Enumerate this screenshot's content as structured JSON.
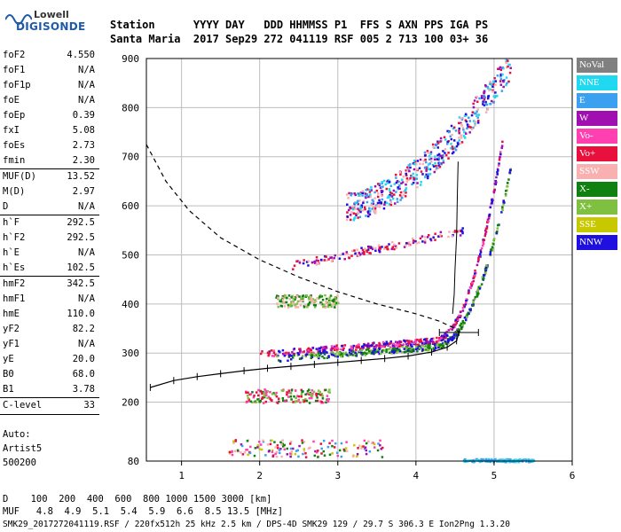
{
  "header": {
    "logo_brand": "Lowell",
    "logo_name": "DIGISONDE",
    "row1": "Station      YYYY DAY   DDD HHMMSS P1  FFS S AXN PPS IGA PS",
    "row2": "Santa Maria  2017 Sep29 272 041119 RSF 005 2 713 100 03+ 36"
  },
  "params": [
    {
      "label": "foF2",
      "value": "4.550"
    },
    {
      "label": "foF1",
      "value": "N/A"
    },
    {
      "label": "foF1p",
      "value": "N/A"
    },
    {
      "label": "foE",
      "value": "N/A"
    },
    {
      "label": "foEp",
      "value": "0.39"
    },
    {
      "label": "fxI",
      "value": "5.08"
    },
    {
      "label": "foEs",
      "value": "2.73"
    },
    {
      "label": "fmin",
      "value": "2.30"
    },
    {
      "label": "MUF(D)",
      "value": "13.52"
    },
    {
      "label": "M(D)",
      "value": "2.97"
    },
    {
      "label": "D",
      "value": "N/A"
    },
    {
      "label": "h`F",
      "value": "292.5"
    },
    {
      "label": "h`F2",
      "value": "292.5"
    },
    {
      "label": "h`E",
      "value": "N/A"
    },
    {
      "label": "h`Es",
      "value": "102.5"
    },
    {
      "label": "hmF2",
      "value": "342.5"
    },
    {
      "label": "hmF1",
      "value": "N/A"
    },
    {
      "label": "hmE",
      "value": "110.0"
    },
    {
      "label": "yF2",
      "value": "82.2"
    },
    {
      "label": "yF1",
      "value": "N/A"
    },
    {
      "label": "yE",
      "value": "20.0"
    },
    {
      "label": "B0",
      "value": "68.0"
    },
    {
      "label": "B1",
      "value": "3.78"
    },
    {
      "label": "C-level",
      "value": "33"
    }
  ],
  "auto": {
    "line1": "Auto:",
    "line2": "Artist5",
    "line3": "500200"
  },
  "legend": [
    {
      "label": "NoVal",
      "color": "#808080"
    },
    {
      "label": "NNE",
      "color": "#20d8f0"
    },
    {
      "label": "E",
      "color": "#3ca0f0"
    },
    {
      "label": "W",
      "color": "#a010b0"
    },
    {
      "label": "Vo-",
      "color": "#ff40b0"
    },
    {
      "label": "Vo+",
      "color": "#e8103c"
    },
    {
      "label": "SSW",
      "color": "#f8b0b0"
    },
    {
      "label": "X-",
      "color": "#108010"
    },
    {
      "label": "X+",
      "color": "#80c040"
    },
    {
      "label": "SSE",
      "color": "#c8c800"
    },
    {
      "label": "NNW",
      "color": "#2010e0"
    }
  ],
  "bottom": {
    "d_row": "D    100  200  400  600  800 1000 1500 3000 [km]",
    "muf_row": "MUF   4.8  4.9  5.1  5.4  5.9  6.6  8.5 13.5 [MHz]",
    "footer": "SMK29_2017272041119.RSF / 220fx512h 25 kHz 2.5 km / DPS-4D SMK29 129 / 29.7 S 306.3 E Ion2Png 1.3.20"
  },
  "chart_data": {
    "type": "scatter",
    "xlabel": "",
    "ylabel": "",
    "xlim": [
      0.55,
      6.0
    ],
    "ylim": [
      80,
      900
    ],
    "xticks": [
      1,
      2,
      3,
      4,
      5,
      6
    ],
    "yticks": [
      80,
      200,
      300,
      400,
      500,
      600,
      700,
      800,
      900
    ],
    "grid": true,
    "legend_position": "right",
    "traces": [
      {
        "name": "true-height profile",
        "style": "solid-with-ticks",
        "points": [
          [
            0.6,
            230
          ],
          [
            0.9,
            244
          ],
          [
            1.2,
            252
          ],
          [
            1.5,
            258
          ],
          [
            1.8,
            264
          ],
          [
            2.1,
            269
          ],
          [
            2.4,
            273
          ],
          [
            2.7,
            277
          ],
          [
            3.0,
            281
          ],
          [
            3.3,
            285
          ],
          [
            3.6,
            289
          ],
          [
            3.9,
            294
          ],
          [
            4.2,
            302
          ],
          [
            4.4,
            312
          ],
          [
            4.52,
            325
          ],
          [
            4.55,
            342
          ]
        ]
      },
      {
        "name": "profile upper branch",
        "style": "dashed",
        "points": [
          [
            0.55,
            725
          ],
          [
            0.8,
            650
          ],
          [
            1.1,
            590
          ],
          [
            1.5,
            535
          ],
          [
            2.0,
            490
          ],
          [
            2.5,
            455
          ],
          [
            3.0,
            425
          ],
          [
            3.5,
            400
          ],
          [
            4.0,
            380
          ],
          [
            4.3,
            365
          ],
          [
            4.5,
            350
          ],
          [
            4.55,
            342
          ]
        ]
      },
      {
        "name": "F2 model trace",
        "style": "solid-thin",
        "points": [
          [
            4.47,
            380
          ],
          [
            4.49,
            420
          ],
          [
            4.5,
            470
          ],
          [
            4.52,
            540
          ],
          [
            4.53,
            620
          ],
          [
            4.54,
            690
          ]
        ]
      }
    ],
    "error_bar": {
      "x": 4.55,
      "x_low": 4.3,
      "x_high": 4.8,
      "y": 342
    },
    "echo_clusters": [
      {
        "name": "Es low",
        "x_range": [
          1.6,
          3.6
        ],
        "y_range": [
          90,
          125
        ],
        "colors": [
          "#f8b0b0",
          "#ff40b0",
          "#e8103c",
          "#c8c800",
          "#108010",
          "#a010b0",
          "#3ca0f0"
        ]
      },
      {
        "name": "Es 2nd",
        "x_range": [
          1.8,
          2.9
        ],
        "y_range": [
          200,
          228
        ],
        "colors": [
          "#e8103c",
          "#108010",
          "#ff40b0",
          "#80c040"
        ]
      },
      {
        "name": "F2 O-trace",
        "x_range": [
          2.0,
          5.1
        ],
        "y_range": [
          290,
          700
        ],
        "colors": [
          "#e8103c",
          "#ff40b0",
          "#a010b0",
          "#2010e0"
        ]
      },
      {
        "name": "F2 X-trace",
        "x_range": [
          2.2,
          5.2
        ],
        "y_range": [
          285,
          640
        ],
        "colors": [
          "#108010",
          "#80c040",
          "#2010e0"
        ]
      },
      {
        "name": "Es 3rd",
        "x_range": [
          2.2,
          3.0
        ],
        "y_range": [
          395,
          420
        ],
        "colors": [
          "#108010",
          "#80c040",
          "#f8b0b0"
        ]
      },
      {
        "name": "2F2 hop",
        "x_range": [
          2.4,
          4.6
        ],
        "y_range": [
          470,
          560
        ],
        "colors": [
          "#e8103c",
          "#a010b0",
          "#f8b0b0",
          "#2010e0"
        ]
      },
      {
        "name": "2nd hop spread",
        "x_range": [
          3.1,
          5.2
        ],
        "y_range": [
          590,
          900
        ],
        "colors": [
          "#20d8f0",
          "#3ca0f0",
          "#a010b0",
          "#2010e0",
          "#e8103c",
          "#f8b0b0"
        ]
      },
      {
        "name": "noise 80km",
        "x_range": [
          4.6,
          5.5
        ],
        "y_range": [
          80,
          86
        ],
        "colors": [
          "#3ca0f0",
          "#20d8f0"
        ]
      }
    ]
  }
}
